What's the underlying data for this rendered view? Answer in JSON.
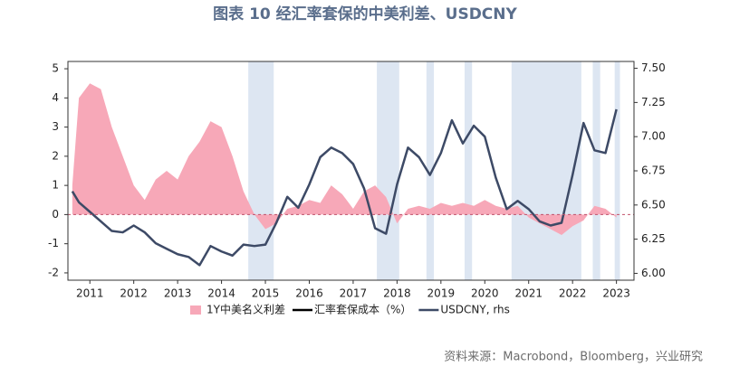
{
  "chart_data": {
    "type": "combo",
    "title": "图表 10  经汇率套保的中美利差、USDCNY",
    "source": "资料来源：Macrobond，Bloomberg，兴业研究",
    "x": [
      2011.1,
      2011.25,
      2011.5,
      2011.75,
      2012,
      2012.25,
      2012.5,
      2012.75,
      2013,
      2013.25,
      2013.5,
      2013.75,
      2014,
      2014.25,
      2014.5,
      2014.75,
      2015,
      2015.25,
      2015.5,
      2015.75,
      2016,
      2016.25,
      2016.5,
      2016.75,
      2017,
      2017.25,
      2017.5,
      2017.75,
      2018,
      2018.25,
      2018.5,
      2018.75,
      2019,
      2019.25,
      2019.5,
      2019.75,
      2020,
      2020.25,
      2020.5,
      2020.75,
      2021,
      2021.25,
      2021.5,
      2021.75,
      2022,
      2022.25,
      2022.5,
      2022.75,
      2023,
      2023.25,
      2023.5
    ],
    "series": [
      {
        "name": "1Y中美名义利差",
        "color": "#f7a8b8",
        "kind": "area",
        "values": [
          1.0,
          4.0,
          4.5,
          4.3,
          3.0,
          2.0,
          1.0,
          0.5,
          1.2,
          1.5,
          1.2,
          2.0,
          2.5,
          3.2,
          3.0,
          2.0,
          0.8,
          0.0,
          -0.5,
          -0.3,
          0.2,
          0.3,
          0.5,
          0.4,
          1.0,
          0.7,
          0.2,
          0.8,
          1.0,
          0.6,
          -0.3,
          0.2,
          0.3,
          0.2,
          0.4,
          0.3,
          0.4,
          0.3,
          0.5,
          0.3,
          0.2,
          0.3,
          -0.1,
          -0.3,
          -0.5,
          -0.7,
          -0.4,
          -0.2,
          0.3,
          0.2,
          -0.1
        ]
      },
      {
        "name": "汇率套保成本（%）",
        "color": "#000000",
        "kind": "line",
        "values": [
          null,
          null,
          null,
          null,
          null,
          null,
          null,
          null,
          null,
          null,
          null,
          null,
          null,
          null,
          null,
          null,
          null,
          null,
          null,
          null,
          null,
          null,
          null,
          null,
          null,
          null,
          null,
          null,
          null,
          null,
          null,
          null,
          null,
          null,
          null,
          null,
          null,
          null,
          null,
          null,
          null,
          null,
          null,
          null,
          null,
          null,
          null,
          null,
          null,
          null,
          null
        ]
      },
      {
        "name": "USDCNY, rhs",
        "color": "#3d4a66",
        "kind": "line",
        "axis": "y2",
        "values": [
          6.6,
          6.52,
          6.45,
          6.38,
          6.31,
          6.3,
          6.35,
          6.3,
          6.22,
          6.18,
          6.14,
          6.12,
          6.06,
          6.2,
          6.16,
          6.13,
          6.21,
          6.2,
          6.21,
          6.37,
          6.56,
          6.48,
          6.65,
          6.85,
          6.92,
          6.88,
          6.8,
          6.62,
          6.33,
          6.29,
          6.65,
          6.92,
          6.85,
          6.72,
          6.88,
          7.12,
          6.95,
          7.08,
          7.0,
          6.7,
          6.47,
          6.53,
          6.47,
          6.38,
          6.35,
          6.37,
          6.72,
          7.1,
          6.9,
          6.88,
          7.2
        ]
      }
    ],
    "shaded_periods": [
      [
        2015.11,
        2015.69
      ],
      [
        2018.04,
        2018.55
      ],
      [
        2019.17,
        2019.34
      ],
      [
        2020.04,
        2020.21
      ],
      [
        2021.11,
        2022.7
      ],
      [
        2022.96,
        2023.13
      ],
      [
        2023.46,
        2023.58
      ]
    ],
    "shade_color": "#dde6f2",
    "xlim": [
      2011.0,
      2023.9
    ],
    "xticks": [
      {
        "value": 2011.5,
        "label": "2011"
      },
      {
        "value": 2012.5,
        "label": "2012"
      },
      {
        "value": 2013.5,
        "label": "2013"
      },
      {
        "value": 2014.5,
        "label": "2014"
      },
      {
        "value": 2015.5,
        "label": "2015"
      },
      {
        "value": 2016.5,
        "label": "2016"
      },
      {
        "value": 2017.5,
        "label": "2017"
      },
      {
        "value": 2018.5,
        "label": "2018"
      },
      {
        "value": 2019.5,
        "label": "2019"
      },
      {
        "value": 2020.5,
        "label": "2020"
      },
      {
        "value": 2021.5,
        "label": "2021"
      },
      {
        "value": 2022.5,
        "label": "2022"
      },
      {
        "value": 2023.5,
        "label": "2023"
      }
    ],
    "ylim": [
      -2.25,
      5.25
    ],
    "yticks": [
      -2,
      -1,
      0,
      1,
      2,
      3,
      4,
      5
    ],
    "y2lim": [
      5.95,
      7.55
    ],
    "y2ticks": [
      {
        "value": 6,
        "label": "6.00"
      },
      6.25,
      {
        "value": 6.5,
        "label": "6.50"
      },
      6.75,
      {
        "value": 7,
        "label": "7.00"
      },
      7.25,
      {
        "value": 7.5,
        "label": "7.50"
      }
    ]
  }
}
